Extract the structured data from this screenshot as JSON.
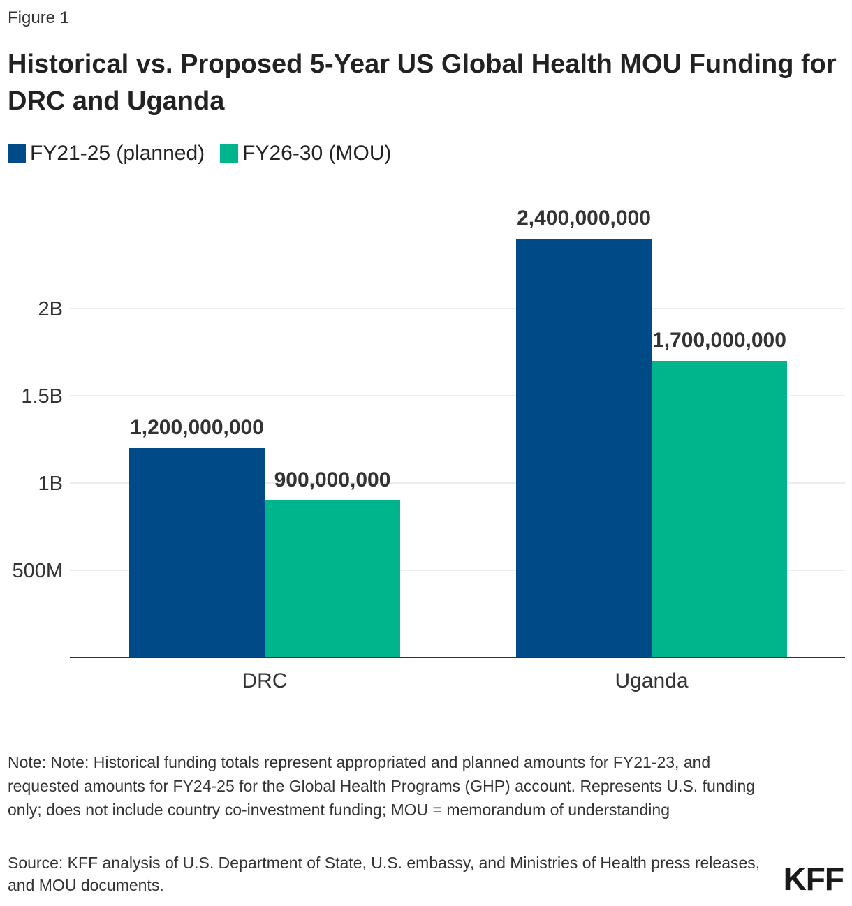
{
  "figure_label": "Figure 1",
  "colors": {
    "fy21_25": "#004a87",
    "fy26_30": "#00b58b",
    "grid": "#d9d9d9",
    "axis": "#333333"
  },
  "chart_data": {
    "type": "bar",
    "title": "Historical vs. Proposed 5-Year US Global Health MOU Funding for DRC and Uganda",
    "categories": [
      "DRC",
      "Uganda"
    ],
    "series": [
      {
        "name": "FY21-25 (planned)",
        "values": [
          1200000000,
          2400000000
        ],
        "labels": [
          "1,200,000,000",
          "2,400,000,000"
        ]
      },
      {
        "name": "FY26-30 (MOU)",
        "values": [
          900000000,
          1700000000
        ],
        "labels": [
          "900,000,000",
          "1,700,000,000"
        ]
      }
    ],
    "yticks": [
      {
        "value": 500000000,
        "label": "500M"
      },
      {
        "value": 1000000000,
        "label": "1B"
      },
      {
        "value": 1500000000,
        "label": "1.5B"
      },
      {
        "value": 2000000000,
        "label": "2B"
      }
    ],
    "ylim": [
      0,
      2600000000
    ],
    "grid": true,
    "legend_position": "top-left",
    "xlabel": "",
    "ylabel": ""
  },
  "note": "Note: Note: Historical funding totals represent appropriated and planned amounts for FY21-23, and requested amounts for FY24-25 for the Global Health Programs (GHP) account. Represents U.S. funding only; does not include country co-investment funding; MOU = memorandum of understanding",
  "source": "Source: KFF analysis of U.S. Department of State, U.S. embassy, and Ministries of Health press releases, and MOU documents.",
  "logo": "KFF"
}
